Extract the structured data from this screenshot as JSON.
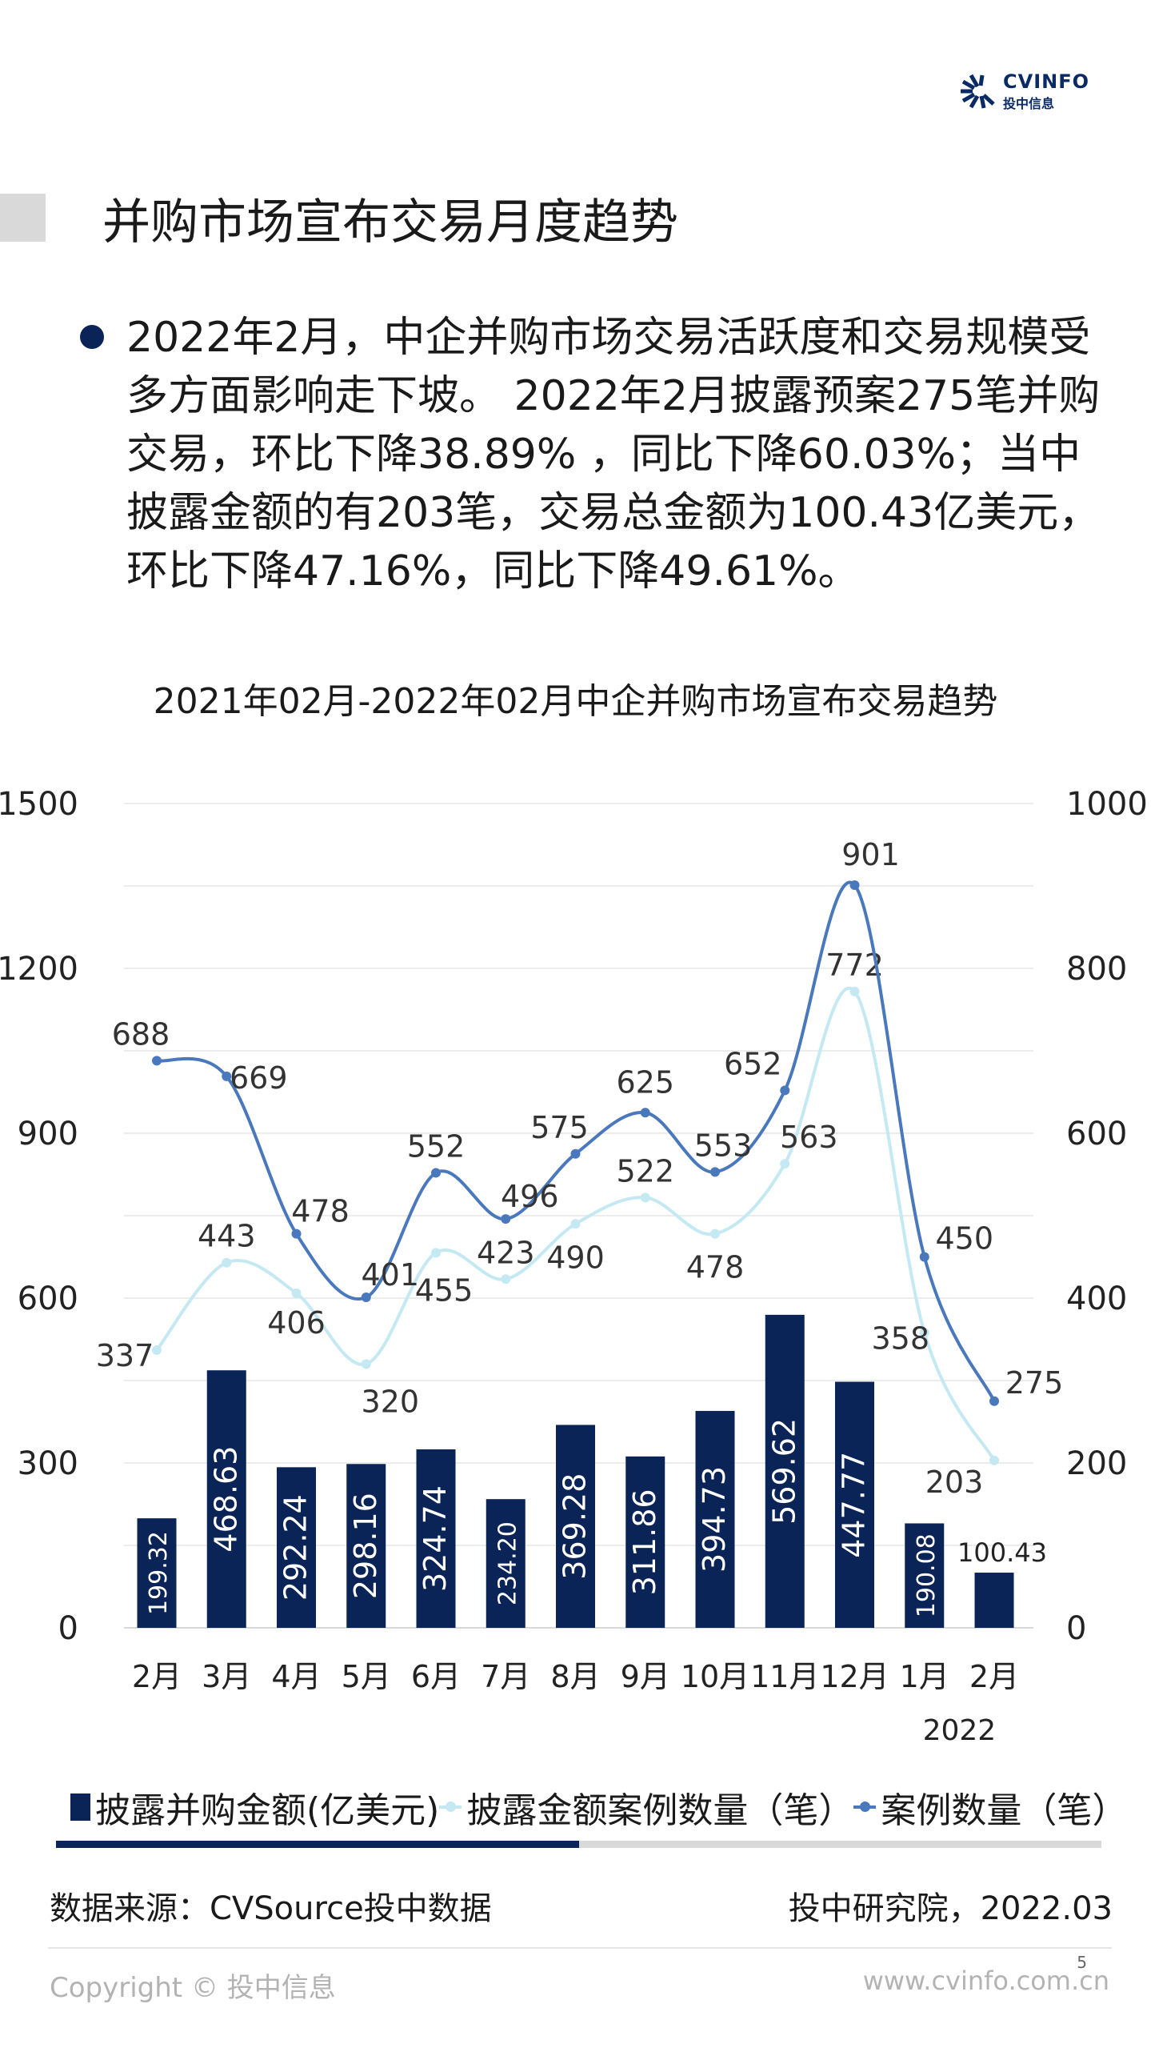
{
  "logo": {
    "en": "CVINFO",
    "cn": "投中信息"
  },
  "title": "并购市场宣布交易月度趋势",
  "bullet": "2022年2月，中企并购市场交易活跃度和交易规模受多方面影响走下坡。 2022年2月披露预案275笔并购交易，环比下降38.89% ，同比下降60.03%；当中披露金额的有203笔，交易总金额为100.43亿美元，环比下降47.16%，同比下降49.61%。",
  "colors": {
    "navy": "#0b2457",
    "light": "#c5e9f3",
    "mid": "#4a78bd"
  },
  "chart_data": {
    "type": "bar+line",
    "title": "2021年02月-2022年02月中企并购市场宣布交易趋势",
    "categories": [
      "2月",
      "3月",
      "4月",
      "5月",
      "6月",
      "7月",
      "8月",
      "9月",
      "10月",
      "11月",
      "12月",
      "1月",
      "2月"
    ],
    "year_label": "2022",
    "left_axis": {
      "ticks": [
        "0",
        "300",
        "600",
        "900",
        "1200",
        "1500"
      ],
      "range": [
        0,
        1500
      ]
    },
    "right_axis": {
      "ticks": [
        "0",
        "200",
        "400",
        "600",
        "800",
        "1000"
      ],
      "range": [
        0,
        1000
      ]
    },
    "series": [
      {
        "name": "披露并购金额(亿美元)",
        "type": "bar",
        "axis": "left",
        "labels": [
          "199.32",
          "468.63",
          "292.24",
          "298.16",
          "324.74",
          "234.20",
          "369.28",
          "311.86",
          "394.73",
          "569.62",
          "447.77",
          "190.08",
          "100.43"
        ],
        "values": [
          199.32,
          468.63,
          292.24,
          298.16,
          324.74,
          234.2,
          369.28,
          311.86,
          394.73,
          569.62,
          447.77,
          190.08,
          100.43
        ]
      },
      {
        "name": "披露金额案例数量（笔）",
        "type": "line",
        "axis": "right",
        "values": [
          337,
          443,
          406,
          320,
          455,
          423,
          490,
          522,
          478,
          563,
          772,
          358,
          203
        ]
      },
      {
        "name": "案例数量（笔）",
        "type": "line",
        "axis": "right",
        "values": [
          688,
          669,
          478,
          401,
          552,
          496,
          575,
          625,
          553,
          652,
          901,
          450,
          275
        ]
      }
    ],
    "grid": true,
    "legend": "bottom"
  },
  "legend_progress": 0.5,
  "footer": {
    "source": "数据来源：CVSource投中数据",
    "org": "投中研究院，2022.03",
    "page": "5",
    "copyright": "Copyright © 投中信息",
    "site": "www.cvinfo.com.cn"
  }
}
